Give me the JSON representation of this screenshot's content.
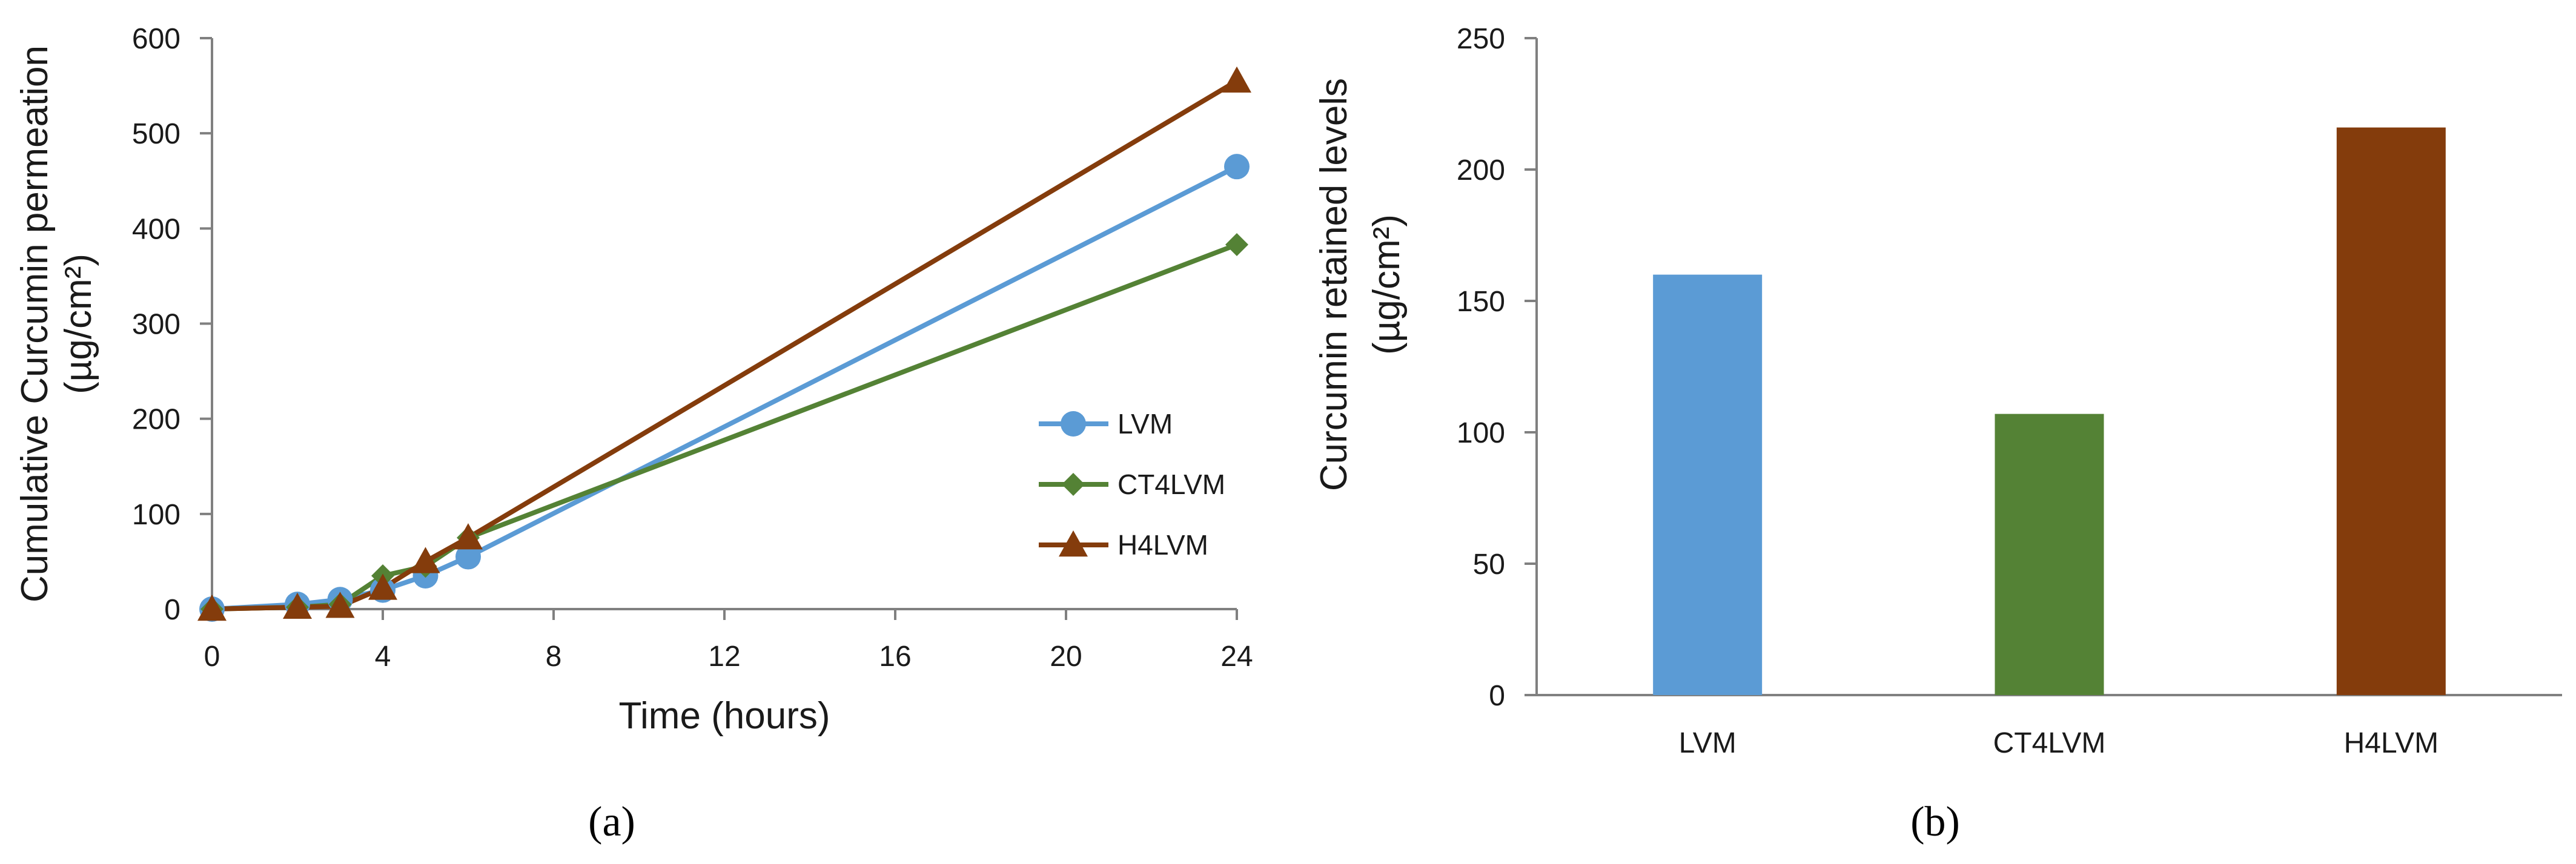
{
  "chart_data": [
    {
      "type": "line",
      "panel_label": "(a)",
      "title": "",
      "xlabel": "Time (hours)",
      "ylabel_line1": "Cumulative Curcumin permeation",
      "ylabel_line2": "(µg/cm²)",
      "x": [
        0,
        2,
        3,
        4,
        5,
        6,
        24
      ],
      "xlim": [
        0,
        24
      ],
      "xticks": [
        0,
        4,
        8,
        12,
        16,
        20,
        24
      ],
      "ylim": [
        0,
        600
      ],
      "yticks": [
        0,
        100,
        200,
        300,
        400,
        500,
        600
      ],
      "grid": false,
      "legend_position": "right-middle",
      "series": [
        {
          "name": "LVM",
          "marker": "circle",
          "color": "#5b9bd5",
          "values": [
            0,
            5,
            10,
            20,
            35,
            55,
            465
          ]
        },
        {
          "name": "CT4LVM",
          "marker": "diamond",
          "color": "#548235",
          "values": [
            0,
            2,
            5,
            35,
            45,
            75,
            383
          ]
        },
        {
          "name": "H4LVM",
          "marker": "triangle",
          "color": "#843c0c",
          "values": [
            0,
            2,
            3,
            22,
            50,
            75,
            555
          ]
        }
      ]
    },
    {
      "type": "bar",
      "panel_label": "(b)",
      "title": "",
      "xlabel": "",
      "ylabel_line1": "Curcumin retained levels",
      "ylabel_line2": "(µg/cm²)",
      "categories": [
        "LVM",
        "CT4LVM",
        "H4LVM"
      ],
      "values": [
        160,
        107,
        216
      ],
      "colors": [
        "#5b9bd5",
        "#548235",
        "#843c0c"
      ],
      "ylim": [
        0,
        250
      ],
      "yticks": [
        0,
        50,
        100,
        150,
        200,
        250
      ],
      "grid": false
    }
  ]
}
